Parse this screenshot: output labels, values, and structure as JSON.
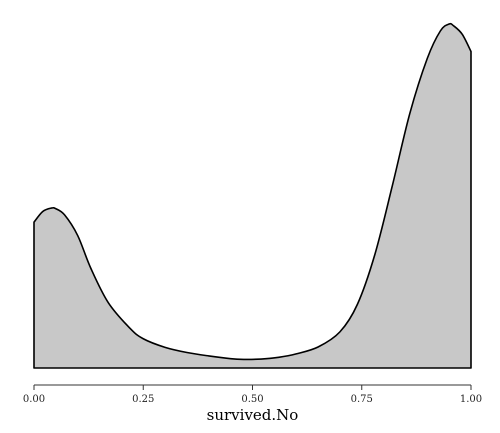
{
  "chart_data": {
    "type": "area",
    "title": "",
    "xlabel": "survived.No",
    "ylabel": "",
    "xlim": [
      0,
      1
    ],
    "ylim": [
      0,
      1
    ],
    "grid": false,
    "legend": "none",
    "fill_color": "#c8c8c8",
    "line_color": "#000000",
    "x_ticks": [
      {
        "value": 0,
        "label": "0.00"
      },
      {
        "value": 0.25,
        "label": "0.25"
      },
      {
        "value": 0.5,
        "label": "0.50"
      },
      {
        "value": 0.75,
        "label": "0.75"
      },
      {
        "value": 1,
        "label": "1.00"
      }
    ],
    "series": [
      {
        "x": [
          0.0,
          0.02,
          0.04,
          0.05,
          0.07,
          0.1,
          0.13,
          0.17,
          0.22,
          0.25,
          0.3,
          0.35,
          0.4,
          0.45,
          0.48,
          0.52,
          0.56,
          0.6,
          0.65,
          0.7,
          0.74,
          0.78,
          0.82,
          0.86,
          0.9,
          0.93,
          0.95,
          0.96,
          0.98,
          1.0
        ],
        "y": [
          0.424,
          0.455,
          0.465,
          0.463,
          0.445,
          0.385,
          0.29,
          0.19,
          0.115,
          0.085,
          0.06,
          0.045,
          0.035,
          0.027,
          0.025,
          0.026,
          0.031,
          0.041,
          0.061,
          0.105,
          0.185,
          0.33,
          0.53,
          0.74,
          0.9,
          0.98,
          1.0,
          0.995,
          0.97,
          0.92
        ]
      }
    ]
  }
}
